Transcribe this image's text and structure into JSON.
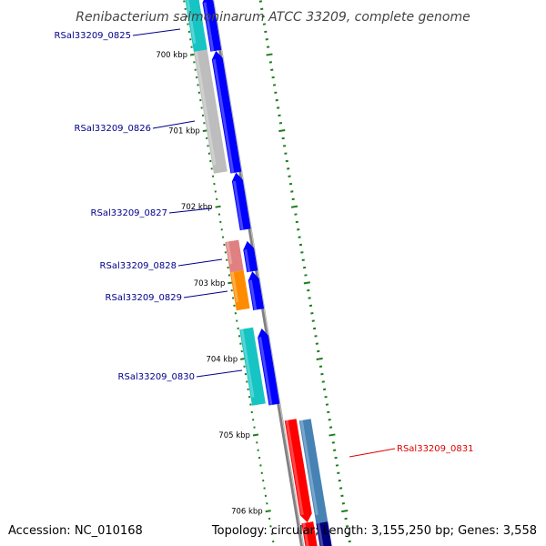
{
  "title": "Renibacterium salmoninarum ATCC 33209, complete genome",
  "accession": "Accession: NC_010168",
  "summary": "Topology: circular; Length: 3,155,250 bp; Genes: 3,558",
  "colors": {
    "backbone": "#808080",
    "tick": "#1e7d1e",
    "cds": "#0000ff",
    "label_normal": "#00008b",
    "label_highlight": "#e00000"
  },
  "ticks": [
    {
      "label": "700 kbp",
      "kb": 700
    },
    {
      "label": "701 kbp",
      "kb": 701
    },
    {
      "label": "702 kbp",
      "kb": 702
    },
    {
      "label": "703 kbp",
      "kb": 703
    },
    {
      "label": "704 kbp",
      "kb": 704
    },
    {
      "label": "705 kbp",
      "kb": 705
    },
    {
      "label": "706 kbp",
      "kb": 706
    }
  ],
  "genes": [
    {
      "locus": "RSal33209_0825",
      "highlight": false
    },
    {
      "locus": "RSal33209_0826",
      "highlight": false
    },
    {
      "locus": "RSal33209_0827",
      "highlight": false
    },
    {
      "locus": "RSal33209_0828",
      "highlight": false
    },
    {
      "locus": "RSal33209_0829",
      "highlight": false
    },
    {
      "locus": "RSal33209_0830",
      "highlight": false
    },
    {
      "locus": "RSal33209_0831",
      "highlight": true
    }
  ],
  "features": [
    {
      "name": "cog-0825",
      "color": "#16c4c4",
      "start_kb": 699.2,
      "end_kb": 699.95,
      "lane": "left"
    },
    {
      "name": "cds-0825",
      "color": "#0000ff",
      "start_kb": 699.2,
      "end_kb": 699.95,
      "lane": "mid",
      "strand": "plus"
    },
    {
      "name": "cog-0826",
      "color": "#bdbdbd",
      "start_kb": 699.95,
      "end_kb": 701.55,
      "lane": "left"
    },
    {
      "name": "cds-0826",
      "color": "#0000ff",
      "start_kb": 699.95,
      "end_kb": 701.55,
      "lane": "mid",
      "strand": "plus"
    },
    {
      "name": "cds-0827",
      "color": "#0000ff",
      "start_kb": 701.55,
      "end_kb": 702.3,
      "lane": "mid",
      "strand": "plus"
    },
    {
      "name": "cog-0828",
      "color": "#e08080",
      "start_kb": 702.45,
      "end_kb": 702.85,
      "lane": "left"
    },
    {
      "name": "cds-0828",
      "color": "#0000ff",
      "start_kb": 702.45,
      "end_kb": 702.85,
      "lane": "mid",
      "strand": "plus"
    },
    {
      "name": "cog-0829",
      "color": "#ff8c00",
      "start_kb": 702.85,
      "end_kb": 703.35,
      "lane": "left"
    },
    {
      "name": "cds-0829",
      "color": "#0000ff",
      "start_kb": 702.85,
      "end_kb": 703.35,
      "lane": "mid",
      "strand": "plus"
    },
    {
      "name": "cog-0830",
      "color": "#16c4c4",
      "start_kb": 703.6,
      "end_kb": 704.6,
      "lane": "left"
    },
    {
      "name": "cds-0830",
      "color": "#0000ff",
      "start_kb": 703.6,
      "end_kb": 704.6,
      "lane": "mid",
      "strand": "plus"
    },
    {
      "name": "cds-0831",
      "color": "#ff0000",
      "start_kb": 704.8,
      "end_kb": 706.15,
      "lane": "right1",
      "strand": "minus"
    },
    {
      "name": "cog-0831",
      "color": "#4682b4",
      "start_kb": 704.8,
      "end_kb": 706.15,
      "lane": "right2"
    },
    {
      "name": "cds-0832",
      "color": "#ff0000",
      "start_kb": 706.15,
      "end_kb": 706.6,
      "lane": "right1",
      "strand": "minus"
    },
    {
      "name": "cog-0832",
      "color": "#000080",
      "start_kb": 706.15,
      "end_kb": 706.6,
      "lane": "right2"
    }
  ]
}
